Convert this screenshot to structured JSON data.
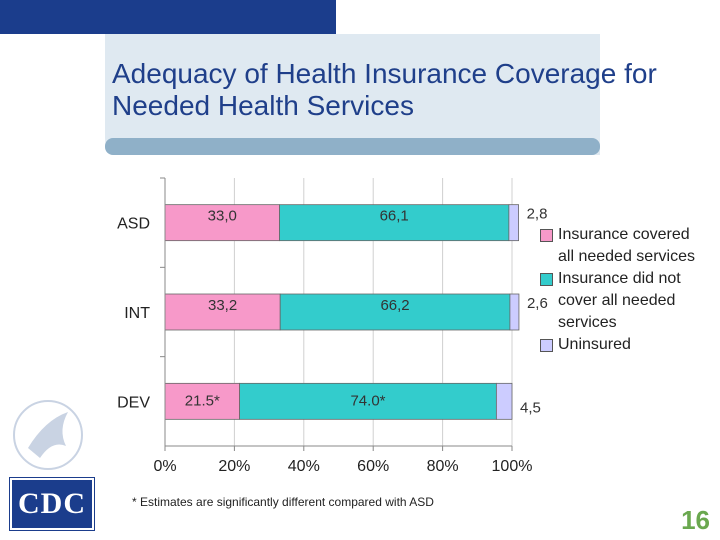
{
  "slide": {
    "title": "Adequacy of Health Insurance Coverage for Needed Health Services",
    "footnote": "* Estimates are significantly different compared with ASD",
    "page_number": "16",
    "logo_text": "CDC"
  },
  "colors": {
    "banner": "#1b3d8c",
    "title_bar": "#8fb0c8",
    "title_text": "#1f3f8a",
    "page_number": "#6aa84f"
  },
  "chart_data": {
    "type": "bar",
    "orientation": "horizontal",
    "stacked": true,
    "categories": [
      "ASD",
      "INT",
      "DEV"
    ],
    "series": [
      {
        "name": "Insurance covered all needed services",
        "color": "#f799c9",
        "values": [
          33.0,
          33.2,
          21.5
        ],
        "labels": [
          "33,0",
          "33,2",
          "21.5*"
        ]
      },
      {
        "name": "Insurance did not cover all needed services",
        "color": "#33cccc",
        "values": [
          66.1,
          66.2,
          74.0
        ],
        "labels": [
          "66,1",
          "66,2",
          "74.0*"
        ]
      },
      {
        "name": "Uninsured",
        "color": "#ccccff",
        "values": [
          2.8,
          2.6,
          4.5
        ],
        "labels": [
          "2,8",
          "2,6",
          "4,5"
        ]
      }
    ],
    "xlim": [
      0,
      100
    ],
    "x_ticks": [
      "0%",
      "20%",
      "40%",
      "60%",
      "80%",
      "100%"
    ],
    "legend_position": "right"
  }
}
